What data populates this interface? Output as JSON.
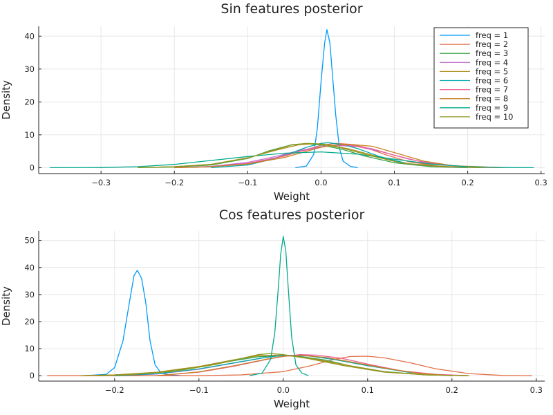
{
  "chart_data": [
    {
      "type": "line",
      "title": "Sin features posterior",
      "xlabel": "Weight",
      "ylabel": "Density",
      "xlim": [
        -0.385,
        0.305
      ],
      "ylim": [
        -1.8,
        43
      ],
      "xticks": [
        -0.3,
        -0.2,
        -0.1,
        0.0,
        0.1,
        0.2,
        0.3
      ],
      "xtick_labels": [
        "−0.3",
        "−0.2",
        "−0.1",
        "0.0",
        "0.1",
        "0.2",
        "0.3"
      ],
      "yticks": [
        0,
        10,
        20,
        30,
        40
      ],
      "ytick_labels": [
        "0",
        "10",
        "20",
        "30",
        "40"
      ],
      "grid": true,
      "legend_position": "top-right",
      "series": [
        {
          "name": "freq = 1",
          "color": "#009AFA",
          "x": [
            -0.035,
            -0.02,
            -0.01,
            -0.005,
            0.0,
            0.005,
            0.008,
            0.012,
            0.015,
            0.02,
            0.025,
            0.03,
            0.04,
            0.05
          ],
          "y": [
            0,
            0.5,
            4,
            12,
            26,
            38,
            42,
            38,
            30,
            16,
            6,
            2,
            0.4,
            0
          ]
        },
        {
          "name": "freq = 2",
          "color": "#E36F47",
          "x": [
            -0.2,
            -0.15,
            -0.1,
            -0.05,
            -0.02,
            0.0,
            0.02,
            0.04,
            0.06,
            0.09,
            0.12,
            0.16,
            0.2,
            0.25
          ],
          "y": [
            0,
            0.3,
            1.2,
            3.5,
            5.5,
            6.8,
            7.4,
            7.1,
            6.2,
            3.8,
            1.8,
            0.5,
            0.1,
            0
          ]
        },
        {
          "name": "freq = 3",
          "color": "#3EA44E",
          "x": [
            -0.25,
            -0.2,
            -0.15,
            -0.1,
            -0.07,
            -0.04,
            -0.02,
            0.0,
            0.03,
            0.06,
            0.1,
            0.15,
            0.2
          ],
          "y": [
            0,
            0.2,
            0.8,
            2.8,
            5.2,
            7.0,
            7.3,
            6.9,
            5.5,
            3.5,
            1.5,
            0.3,
            0
          ]
        },
        {
          "name": "freq = 4",
          "color": "#C270D2",
          "x": [
            -0.2,
            -0.15,
            -0.1,
            -0.06,
            -0.03,
            0.0,
            0.02,
            0.05,
            0.08,
            0.12,
            0.16,
            0.22
          ],
          "y": [
            0,
            0.4,
            1.6,
            3.5,
            5.2,
            6.4,
            6.8,
            6.4,
            5.0,
            2.6,
            0.9,
            0
          ]
        },
        {
          "name": "freq = 5",
          "color": "#AC8D18",
          "x": [
            -0.25,
            -0.2,
            -0.15,
            -0.1,
            -0.06,
            -0.03,
            -0.01,
            0.01,
            0.04,
            0.08,
            0.12,
            0.17,
            0.22
          ],
          "y": [
            0,
            0.3,
            1.0,
            3.0,
            5.4,
            7.0,
            7.3,
            7.0,
            5.6,
            3.2,
            1.2,
            0.3,
            0
          ]
        },
        {
          "name": "freq = 6",
          "color": "#00A9AD",
          "x": [
            -0.15,
            -0.1,
            -0.07,
            -0.04,
            -0.02,
            0.0,
            0.01,
            0.03,
            0.05,
            0.08,
            0.12,
            0.16,
            0.2
          ],
          "y": [
            0,
            0.8,
            2.4,
            4.5,
            6.2,
            7.4,
            7.6,
            7.0,
            5.8,
            3.4,
            1.1,
            0.3,
            0
          ]
        },
        {
          "name": "freq = 7",
          "color": "#ED5E93",
          "x": [
            -0.2,
            -0.15,
            -0.1,
            -0.06,
            -0.03,
            0.0,
            0.02,
            0.04,
            0.07,
            0.1,
            0.14,
            0.19,
            0.25
          ],
          "y": [
            0,
            0.3,
            1.3,
            3.1,
            4.9,
            6.3,
            6.9,
            6.8,
            5.7,
            3.8,
            1.6,
            0.4,
            0
          ]
        },
        {
          "name": "freq = 8",
          "color": "#C68125",
          "x": [
            -0.2,
            -0.15,
            -0.1,
            -0.05,
            -0.02,
            0.0,
            0.02,
            0.04,
            0.07,
            0.1,
            0.14,
            0.18,
            0.25
          ],
          "y": [
            0,
            0.3,
            1.1,
            3.1,
            5.0,
            6.2,
            6.9,
            7.1,
            6.5,
            4.6,
            2.0,
            0.6,
            0
          ]
        },
        {
          "name": "freq = 9",
          "color": "#00A98D",
          "x": [
            -0.37,
            -0.3,
            -0.25,
            -0.2,
            -0.15,
            -0.1,
            -0.05,
            0.0,
            0.05,
            0.1,
            0.15,
            0.2,
            0.25,
            0.29
          ],
          "y": [
            0,
            0.05,
            0.3,
            1.0,
            2.2,
            3.4,
            4.4,
            4.8,
            4.1,
            2.6,
            1.1,
            0.3,
            0.05,
            0
          ]
        },
        {
          "name": "freq = 10",
          "color": "#8E971D",
          "x": [
            -0.25,
            -0.2,
            -0.15,
            -0.1,
            -0.07,
            -0.04,
            -0.02,
            0.0,
            0.03,
            0.07,
            0.11,
            0.16,
            0.22
          ],
          "y": [
            0,
            0.3,
            1.0,
            2.9,
            5.0,
            6.9,
            7.4,
            7.2,
            5.9,
            3.5,
            1.4,
            0.3,
            0
          ]
        }
      ]
    },
    {
      "type": "line",
      "title": "Cos features posterior",
      "xlabel": "Weight",
      "ylabel": "Density",
      "xlim": [
        -0.29,
        0.31
      ],
      "ylim": [
        -2,
        53.5
      ],
      "xticks": [
        -0.2,
        -0.1,
        0.0,
        0.1,
        0.2,
        0.3
      ],
      "xtick_labels": [
        "−0.2",
        "−0.1",
        "0.0",
        "0.1",
        "0.2",
        "0.3"
      ],
      "yticks": [
        0,
        10,
        20,
        30,
        40,
        50
      ],
      "ytick_labels": [
        "0",
        "10",
        "20",
        "30",
        "40",
        "50"
      ],
      "grid": true,
      "series": [
        {
          "name": "",
          "color": "#009AFA",
          "x": [
            -0.235,
            -0.21,
            -0.2,
            -0.19,
            -0.182,
            -0.177,
            -0.173,
            -0.168,
            -0.163,
            -0.158,
            -0.152,
            -0.145,
            -0.135,
            -0.12
          ],
          "y": [
            0,
            0.5,
            3,
            13,
            28,
            37,
            39,
            36,
            27,
            13,
            4,
            1,
            0.3,
            0
          ]
        },
        {
          "name": "",
          "color": "#E36F47",
          "x": [
            -0.28,
            -0.2,
            -0.1,
            -0.05,
            0.0,
            0.03,
            0.06,
            0.08,
            0.1,
            0.12,
            0.15,
            0.18,
            0.22,
            0.26,
            0.295
          ],
          "y": [
            0,
            0,
            0,
            0.3,
            1.5,
            3.5,
            6.0,
            7.1,
            7.2,
            6.6,
            4.8,
            2.6,
            0.8,
            0.1,
            0
          ]
        },
        {
          "name": "",
          "color": "#3EA44E",
          "x": [
            -0.24,
            -0.2,
            -0.15,
            -0.1,
            -0.06,
            -0.03,
            0.0,
            0.02,
            0.05,
            0.08,
            0.12,
            0.17,
            0.22
          ],
          "y": [
            0,
            0.3,
            1.2,
            3.2,
            5.5,
            7.0,
            7.4,
            7.1,
            5.8,
            3.6,
            1.5,
            0.3,
            0
          ]
        },
        {
          "name": "",
          "color": "#C270D2",
          "x": [
            -0.2,
            -0.15,
            -0.1,
            -0.06,
            -0.02,
            0.0,
            0.03,
            0.06,
            0.1,
            0.15,
            0.2
          ],
          "y": [
            0,
            0.6,
            2.4,
            4.6,
            6.8,
            7.6,
            7.4,
            6.2,
            3.8,
            1.2,
            0
          ]
        },
        {
          "name": "",
          "color": "#AC8D18",
          "x": [
            -0.24,
            -0.2,
            -0.15,
            -0.1,
            -0.06,
            -0.03,
            -0.01,
            0.01,
            0.04,
            0.08,
            0.12,
            0.17,
            0.22
          ],
          "y": [
            0,
            0.3,
            1.3,
            3.4,
            5.8,
            7.4,
            7.6,
            7.3,
            6.0,
            3.6,
            1.4,
            0.3,
            0
          ]
        },
        {
          "name": "",
          "color": "#00A9AD",
          "x": [
            -0.2,
            -0.15,
            -0.1,
            -0.05,
            -0.02,
            0.0,
            0.03,
            0.06,
            0.1,
            0.15,
            0.2
          ],
          "y": [
            0,
            0.7,
            2.5,
            5.2,
            6.8,
            7.5,
            7.3,
            6.0,
            3.7,
            1.2,
            0
          ]
        },
        {
          "name": "",
          "color": "#ED5E93",
          "x": [
            -0.15,
            -0.1,
            -0.06,
            -0.02,
            0.0,
            0.02,
            0.04,
            0.07,
            0.1,
            0.14,
            0.18,
            0.22
          ],
          "y": [
            0,
            1.3,
            3.4,
            6.0,
            7.1,
            7.8,
            7.6,
            6.4,
            4.3,
            1.8,
            0.5,
            0
          ]
        },
        {
          "name": "",
          "color": "#C68125",
          "x": [
            -0.15,
            -0.1,
            -0.06,
            -0.02,
            0.0,
            0.02,
            0.05,
            0.08,
            0.12,
            0.16,
            0.2
          ],
          "y": [
            0,
            1.4,
            3.6,
            6.1,
            7.2,
            7.5,
            6.8,
            5.1,
            2.8,
            0.9,
            0
          ]
        },
        {
          "name": "",
          "color": "#00A98D",
          "x": [
            -0.04,
            -0.025,
            -0.015,
            -0.01,
            -0.006,
            -0.003,
            0.0,
            0.003,
            0.006,
            0.01,
            0.015,
            0.022,
            0.03
          ],
          "y": [
            0,
            1,
            6,
            16,
            32,
            45,
            51.5,
            46,
            32,
            14,
            4,
            1,
            0
          ]
        },
        {
          "name": "",
          "color": "#8E971D",
          "x": [
            -0.22,
            -0.18,
            -0.13,
            -0.08,
            -0.05,
            -0.03,
            -0.015,
            0.0,
            0.03,
            0.07,
            0.12,
            0.17,
            0.22
          ],
          "y": [
            0,
            0.4,
            1.6,
            4.2,
            6.4,
            7.8,
            8.2,
            7.8,
            6.3,
            3.8,
            1.3,
            0.3,
            0
          ]
        }
      ]
    }
  ]
}
